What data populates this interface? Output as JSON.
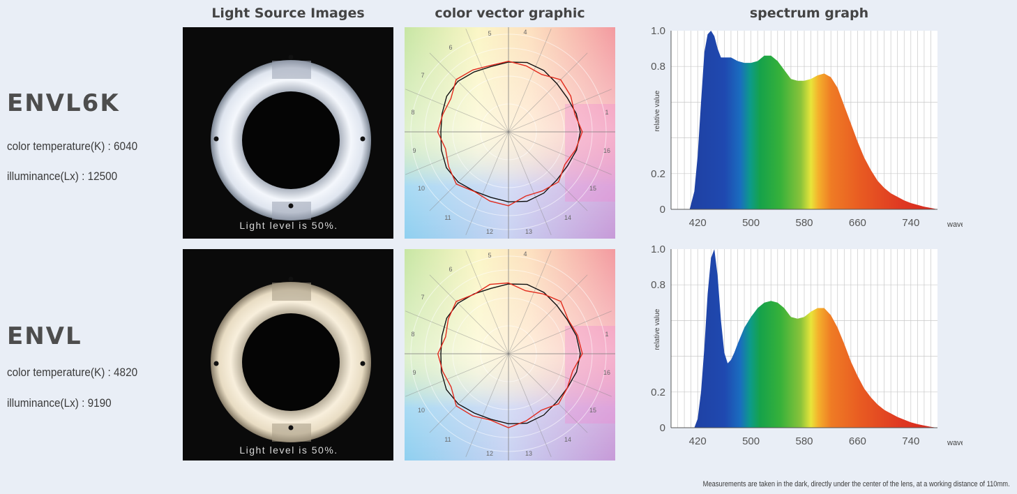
{
  "headers": {
    "light_source": "Light Source Images",
    "color_vector": "color vector graphic",
    "spectrum": "spectrum graph"
  },
  "rows": [
    {
      "model": "ENVL6K",
      "color_temperature": "color temperature(K) : 6040",
      "illuminance": "illuminance(Lx) : 12500",
      "light_level": "Light level is 50%.",
      "ring_color": "#eef3fb",
      "ring_shadow": "#b9c2cf"
    },
    {
      "model": "ENVL",
      "color_temperature": "color temperature(K) : 4820",
      "illuminance": "illuminance(Lx) : 9190",
      "light_level": "Light level is 50%.",
      "ring_color": "#f6ecd6",
      "ring_shadow": "#c9bca3"
    }
  ],
  "vector_labels": [
    "4",
    "5",
    "6",
    "7",
    "8",
    "9",
    "10",
    "11",
    "12",
    "13",
    "14",
    "15",
    "16",
    "1"
  ],
  "footnote": "Measurements are taken in the dark, directly under the center of the lens, at a working distance of 110mm.",
  "chart_data": [
    {
      "type": "area",
      "title": "",
      "xlabel": "wavelength",
      "ylabel": "relative value",
      "xlim": [
        380,
        780
      ],
      "ylim": [
        0,
        1.0
      ],
      "xticks": [
        "420",
        "500",
        "580",
        "660",
        "740"
      ],
      "yticks": [
        "0",
        "0.2",
        "0.8",
        "1.0"
      ],
      "grid": true,
      "x": [
        408,
        415,
        420,
        425,
        430,
        435,
        440,
        445,
        450,
        455,
        460,
        470,
        480,
        490,
        500,
        510,
        520,
        530,
        540,
        550,
        560,
        570,
        580,
        590,
        600,
        610,
        620,
        630,
        640,
        650,
        660,
        670,
        680,
        690,
        700,
        710,
        720,
        730,
        740,
        750,
        760,
        770,
        780
      ],
      "y": [
        0.0,
        0.1,
        0.3,
        0.6,
        0.88,
        0.98,
        1.0,
        0.97,
        0.9,
        0.85,
        0.85,
        0.85,
        0.83,
        0.82,
        0.82,
        0.83,
        0.86,
        0.86,
        0.83,
        0.78,
        0.73,
        0.72,
        0.72,
        0.73,
        0.75,
        0.76,
        0.74,
        0.68,
        0.58,
        0.48,
        0.38,
        0.29,
        0.22,
        0.16,
        0.12,
        0.09,
        0.07,
        0.05,
        0.035,
        0.025,
        0.015,
        0.008,
        0.0
      ]
    },
    {
      "type": "area",
      "title": "",
      "xlabel": "wavelength",
      "ylabel": "relative value",
      "xlim": [
        380,
        780
      ],
      "ylim": [
        0,
        1.0
      ],
      "xticks": [
        "420",
        "500",
        "580",
        "660",
        "740"
      ],
      "yticks": [
        "0",
        "0.2",
        "0.8",
        "1.0"
      ],
      "grid": true,
      "x": [
        415,
        420,
        425,
        430,
        435,
        440,
        445,
        450,
        455,
        460,
        465,
        470,
        475,
        480,
        490,
        500,
        510,
        520,
        530,
        540,
        550,
        560,
        570,
        580,
        590,
        600,
        610,
        620,
        630,
        640,
        650,
        660,
        670,
        680,
        690,
        700,
        710,
        720,
        730,
        740,
        750,
        760,
        770,
        780
      ],
      "y": [
        0.0,
        0.05,
        0.2,
        0.45,
        0.75,
        0.95,
        1.0,
        0.85,
        0.6,
        0.42,
        0.36,
        0.38,
        0.42,
        0.47,
        0.56,
        0.62,
        0.67,
        0.7,
        0.71,
        0.7,
        0.67,
        0.62,
        0.61,
        0.62,
        0.65,
        0.67,
        0.67,
        0.63,
        0.56,
        0.47,
        0.37,
        0.29,
        0.22,
        0.17,
        0.13,
        0.1,
        0.08,
        0.06,
        0.045,
        0.03,
        0.02,
        0.012,
        0.005,
        0.0
      ]
    }
  ]
}
